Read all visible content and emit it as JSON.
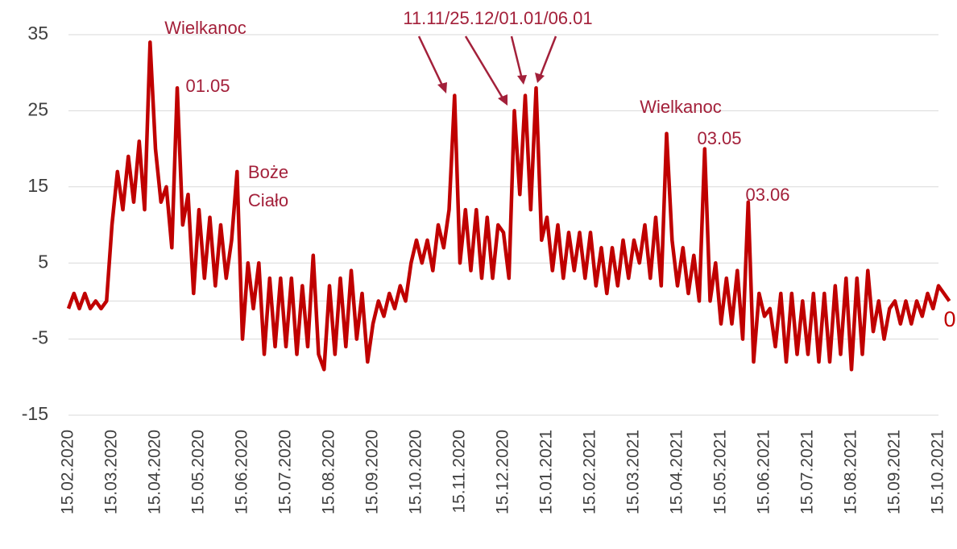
{
  "chart_data": {
    "type": "line",
    "categories": [
      "15.02.2020",
      null,
      null,
      null,
      null,
      null,
      null,
      null,
      "15.03.2020",
      null,
      null,
      null,
      null,
      null,
      null,
      null,
      "15.04.2020",
      null,
      null,
      null,
      null,
      null,
      null,
      null,
      "15.05.2020",
      null,
      null,
      null,
      null,
      null,
      null,
      null,
      "15.06.2020",
      null,
      null,
      null,
      null,
      null,
      null,
      null,
      "15.07.2020",
      null,
      null,
      null,
      null,
      null,
      null,
      null,
      "15.08.2020",
      null,
      null,
      null,
      null,
      null,
      null,
      null,
      "15.09.2020",
      null,
      null,
      null,
      null,
      null,
      null,
      null,
      "15.10.2020",
      null,
      null,
      null,
      null,
      null,
      null,
      null,
      "15.11.2020",
      null,
      null,
      null,
      null,
      null,
      null,
      null,
      "15.12.2020",
      null,
      null,
      null,
      null,
      null,
      null,
      null,
      "15.01.2021",
      null,
      null,
      null,
      null,
      null,
      null,
      null,
      "15.02.2021",
      null,
      null,
      null,
      null,
      null,
      null,
      null,
      "15.03.2021",
      null,
      null,
      null,
      null,
      null,
      null,
      null,
      "15.04.2021",
      null,
      null,
      null,
      null,
      null,
      null,
      null,
      "15.05.2021",
      null,
      null,
      null,
      null,
      null,
      null,
      null,
      "15.06.2021",
      null,
      null,
      null,
      null,
      null,
      null,
      null,
      "15.07.2021",
      null,
      null,
      null,
      null,
      null,
      null,
      null,
      "15.08.2021",
      null,
      null,
      null,
      null,
      null,
      null,
      null,
      "15.09.2021",
      null,
      null,
      null,
      null,
      null,
      null,
      null,
      "15.10.2021",
      null,
      null
    ],
    "values": [
      -1,
      1,
      -1,
      1,
      -1,
      0,
      -1,
      0,
      10,
      17,
      12,
      19,
      13,
      21,
      12,
      34,
      20,
      13,
      15,
      7,
      28,
      10,
      14,
      1,
      12,
      3,
      11,
      2,
      10,
      3,
      8,
      17,
      -5,
      5,
      -1,
      5,
      -7,
      3,
      -6,
      3,
      -6,
      3,
      -7,
      2,
      -6,
      6,
      -7,
      -9,
      2,
      -7,
      3,
      -6,
      4,
      -5,
      1,
      -8,
      -3,
      0,
      -2,
      1,
      -1,
      2,
      0,
      5,
      8,
      5,
      8,
      4,
      10,
      7,
      12,
      27,
      5,
      12,
      4,
      12,
      3,
      11,
      3,
      10,
      9,
      3,
      25,
      14,
      27,
      12,
      28,
      8,
      11,
      4,
      10,
      3,
      9,
      4,
      9,
      3,
      9,
      2,
      7,
      1,
      7,
      2,
      8,
      3,
      8,
      5,
      10,
      3,
      11,
      2,
      22,
      8,
      2,
      7,
      1,
      6,
      0,
      20,
      0,
      5,
      -3,
      3,
      -3,
      4,
      -5,
      13,
      -8,
      1,
      -2,
      -1,
      -6,
      1,
      -8,
      1,
      -7,
      0,
      -7,
      1,
      -8,
      1,
      -8,
      2,
      -7,
      3,
      -9,
      3,
      -7,
      4,
      -4,
      0,
      -5,
      -1,
      0,
      -3,
      0,
      -3,
      0,
      -2,
      1,
      -1,
      2,
      1,
      0
    ],
    "color": "#c00000",
    "ylim": [
      -15,
      35
    ],
    "yticks": [
      -15,
      -5,
      5,
      15,
      25,
      35
    ],
    "grid": true,
    "annotations": [
      "Wielkanoc",
      "01.05",
      "Boże",
      "Ciało",
      "11.11/25.12/01.01/06.01",
      "Wielkanoc",
      "03.05",
      "03.06"
    ]
  }
}
